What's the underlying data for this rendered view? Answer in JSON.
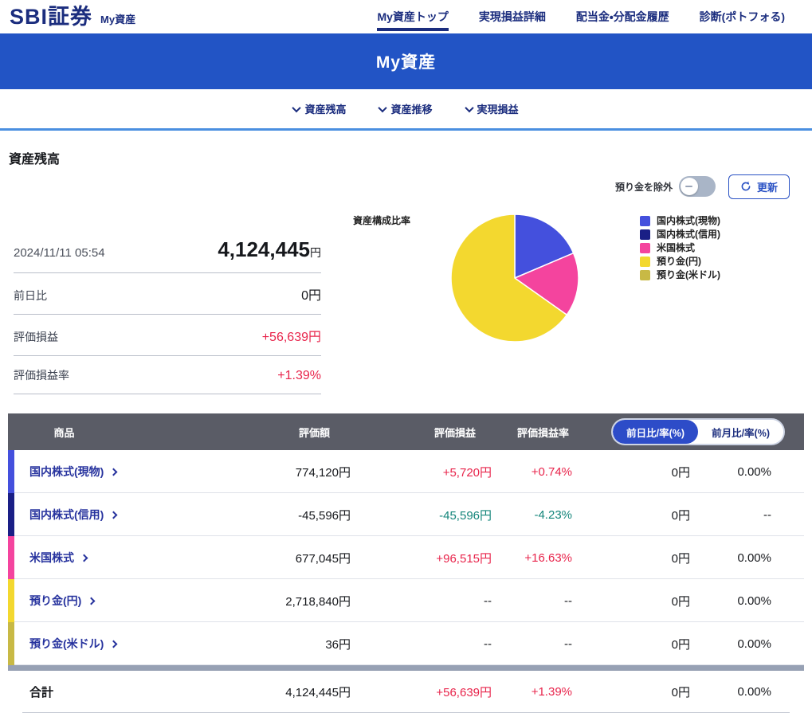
{
  "brand": {
    "logo": "SBI証券",
    "sub": "My資産"
  },
  "top_nav": {
    "items": [
      {
        "label": "My資産トップ",
        "active": true
      },
      {
        "label": "実現損益詳細",
        "active": false
      },
      {
        "label": "配当金・分配金履歴",
        "active": false
      },
      {
        "label": "診断(ポトフォる)",
        "active": false
      }
    ]
  },
  "banner": {
    "title": "My資産"
  },
  "anchor_nav": {
    "items": [
      "資産残高",
      "資産推移",
      "実現損益"
    ]
  },
  "section": {
    "title": "資産残高"
  },
  "controls": {
    "exclude_label": "預り金を除外",
    "toggle_on": false,
    "refresh_label": "更新"
  },
  "summary": {
    "as_of": "2024/11/11 05:54",
    "total_value": "4,124,445",
    "total_unit": "円",
    "rows": [
      {
        "label": "前日比",
        "value": "0円",
        "tone": "flat"
      },
      {
        "label": "評価損益",
        "value": "+56,639円",
        "tone": "up"
      },
      {
        "label": "評価損益率",
        "value": "+1.39%",
        "tone": "up"
      }
    ]
  },
  "chart_data": {
    "type": "pie",
    "title": "資産構成比率",
    "labels": [
      "国内株式(現物)",
      "国内株式(信用)",
      "米国株式",
      "預り金(円)",
      "預り金(米ドル)"
    ],
    "values_yen": [
      774120,
      -45596,
      677045,
      2718840,
      36
    ],
    "display_percent": [
      18.6,
      0,
      16.2,
      65.2,
      0
    ],
    "colors": [
      "#4450dd",
      "#1a1f86",
      "#f4449e",
      "#f3d82f",
      "#c8b945"
    ],
    "legend_position": "right",
    "start_angle_deg": 0,
    "direction": "clockwise"
  },
  "table": {
    "headers": {
      "product": "商品",
      "value": "評価額",
      "pl": "評価損益",
      "pl_rate": "評価損益率"
    },
    "period_toggle": [
      {
        "label": "前日比/率(%)",
        "active": true
      },
      {
        "label": "前月比/率(%)",
        "active": false
      }
    ],
    "rows": [
      {
        "label": "国内株式(現物)",
        "color": "#4450dd",
        "value": "774,120円",
        "pl": "+5,720円",
        "pl_tone": "up",
        "pl_rate": "+0.74%",
        "rate_tone": "up",
        "day": "0円",
        "day_rate": "0.00%"
      },
      {
        "label": "国内株式(信用)",
        "color": "#1a1f86",
        "value": "-45,596円",
        "pl": "-45,596円",
        "pl_tone": "down",
        "pl_rate": "-4.23%",
        "rate_tone": "down",
        "day": "0円",
        "day_rate": "--"
      },
      {
        "label": "米国株式",
        "color": "#f4449e",
        "value": "677,045円",
        "pl": "+96,515円",
        "pl_tone": "up",
        "pl_rate": "+16.63%",
        "rate_tone": "up",
        "day": "0円",
        "day_rate": "0.00%"
      },
      {
        "label": "預り金(円)",
        "color": "#f3d82f",
        "value": "2,718,840円",
        "pl": "--",
        "pl_tone": "flat",
        "pl_rate": "--",
        "rate_tone": "flat",
        "day": "0円",
        "day_rate": "0.00%"
      },
      {
        "label": "預り金(米ドル)",
        "color": "#c8b945",
        "value": "36円",
        "pl": "--",
        "pl_tone": "flat",
        "pl_rate": "--",
        "rate_tone": "flat",
        "day": "0円",
        "day_rate": "0.00%"
      }
    ],
    "total": {
      "label": "合計",
      "value": "4,124,445円",
      "pl": "+56,639円",
      "pl_tone": "up",
      "pl_rate": "+1.39%",
      "rate_tone": "up",
      "day": "0円",
      "day_rate": "0.00%"
    }
  },
  "colors": {
    "accent_blue": "#2254c5",
    "positive_red": "#e8244b",
    "negative_teal": "#13857a",
    "header_slate": "#5a5c66"
  }
}
